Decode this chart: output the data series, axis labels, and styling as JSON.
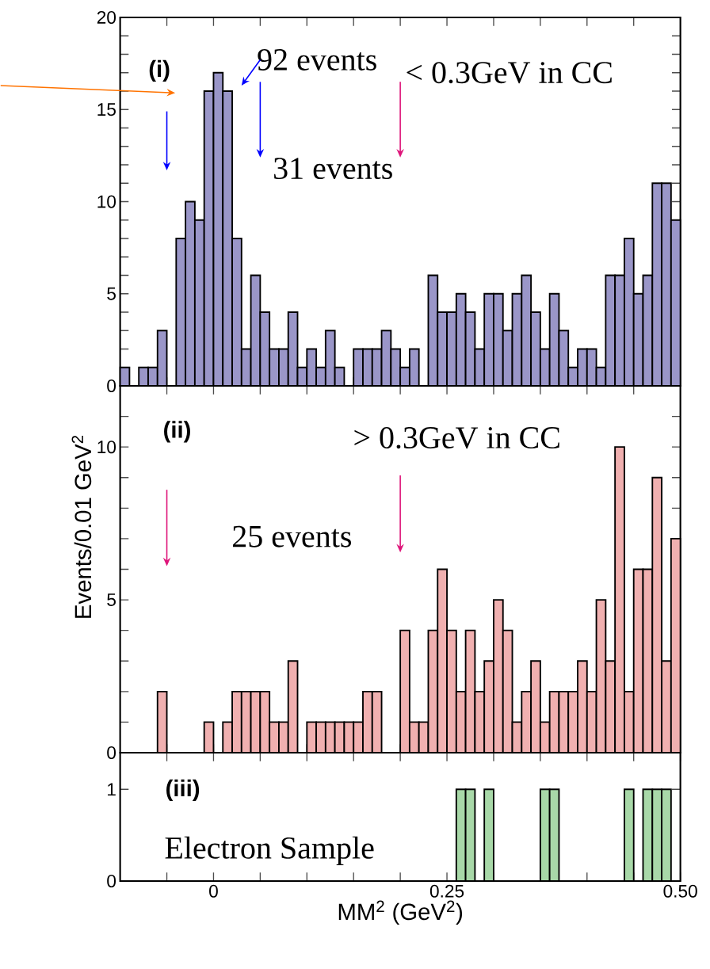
{
  "chart_data": [
    {
      "type": "histogram",
      "color": "#9a96c8",
      "bins": [
        -0.1,
        -0.09,
        -0.08,
        -0.07,
        -0.06,
        -0.05,
        -0.04,
        -0.03,
        -0.02,
        -0.01,
        0,
        0.01,
        0.02,
        0.03,
        0.04,
        0.05,
        0.06,
        0.07,
        0.08,
        0.09,
        0.1,
        0.11,
        0.12,
        0.13,
        0.14,
        0.15,
        0.16,
        0.17,
        0.18,
        0.19,
        0.2,
        0.21,
        0.22,
        0.23,
        0.24,
        0.25,
        0.26,
        0.27,
        0.28,
        0.29,
        0.3,
        0.31,
        0.32,
        0.33,
        0.34,
        0.35,
        0.36,
        0.37,
        0.38,
        0.39,
        0.4,
        0.41,
        0.42,
        0.43,
        0.44,
        0.45,
        0.46,
        0.47,
        0.48,
        0.49,
        0.5
      ],
      "values": [
        1,
        0,
        1,
        1,
        3,
        0,
        8,
        10,
        9,
        16,
        17,
        16,
        8,
        2,
        6,
        4,
        2,
        2,
        4,
        1,
        2,
        1,
        3,
        1,
        0,
        2,
        2,
        2,
        3,
        2,
        1,
        2,
        0,
        6,
        4,
        4,
        5,
        4,
        2,
        5,
        5,
        3,
        5,
        6,
        4,
        2,
        5,
        3,
        1,
        2,
        2,
        1,
        6,
        6,
        8,
        5,
        6,
        11,
        11,
        9
      ],
      "xlim": [
        -0.1,
        0.5
      ],
      "ylim": [
        0,
        20
      ],
      "xticks": [
        {
          "value": -0.05,
          "label": null
        },
        {
          "value": 0,
          "label": null
        },
        {
          "value": 0.05,
          "label": null
        },
        {
          "value": 0.1,
          "label": null
        },
        {
          "value": 0.15,
          "label": null
        },
        {
          "value": 0.2,
          "label": null
        },
        {
          "value": 0.25,
          "label": null
        },
        {
          "value": 0.3,
          "label": null
        },
        {
          "value": 0.35,
          "label": null
        },
        {
          "value": 0.4,
          "label": null
        },
        {
          "value": 0.45,
          "label": null
        }
      ],
      "yticks": [
        0,
        {
          "value": 1,
          "label": null
        },
        {
          "value": 2,
          "label": null
        },
        {
          "value": 3,
          "label": null
        },
        {
          "value": 4,
          "label": null
        },
        5,
        {
          "value": 6,
          "label": null
        },
        {
          "value": 7,
          "label": null
        },
        {
          "value": 8,
          "label": null
        },
        {
          "value": 9,
          "label": null
        },
        10,
        {
          "value": 11,
          "label": null
        },
        {
          "value": 12,
          "label": null
        },
        {
          "value": 13,
          "label": null
        },
        {
          "value": 14,
          "label": null
        },
        15,
        {
          "value": 16,
          "label": null
        },
        {
          "value": 17,
          "label": null
        },
        {
          "value": 18,
          "label": null
        },
        {
          "value": 19,
          "label": null
        },
        20
      ],
      "tick_labels": "y",
      "annotations": [
        "(i)",
        "92 events",
        "< 0.3GeV in CC",
        "31 events"
      ]
    },
    {
      "type": "histogram",
      "color": "#f0b0b0",
      "bins": [
        -0.1,
        -0.09,
        -0.08,
        -0.07,
        -0.06,
        -0.05,
        -0.04,
        -0.03,
        -0.02,
        -0.01,
        0,
        0.01,
        0.02,
        0.03,
        0.04,
        0.05,
        0.06,
        0.07,
        0.08,
        0.09,
        0.1,
        0.11,
        0.12,
        0.13,
        0.14,
        0.15,
        0.16,
        0.17,
        0.18,
        0.19,
        0.2,
        0.21,
        0.22,
        0.23,
        0.24,
        0.25,
        0.26,
        0.27,
        0.28,
        0.29,
        0.3,
        0.31,
        0.32,
        0.33,
        0.34,
        0.35,
        0.36,
        0.37,
        0.38,
        0.39,
        0.4,
        0.41,
        0.42,
        0.43,
        0.44,
        0.45,
        0.46,
        0.47,
        0.48,
        0.49,
        0.5
      ],
      "values": [
        0,
        0,
        0,
        0,
        2,
        0,
        0,
        0,
        0,
        1,
        0,
        1,
        2,
        2,
        2,
        2,
        1,
        1,
        3,
        0,
        1,
        1,
        1,
        1,
        1,
        1,
        2,
        2,
        0,
        0,
        4,
        1,
        1,
        4,
        6,
        4,
        2,
        4,
        2,
        3,
        5,
        4,
        1,
        2,
        3,
        1,
        2,
        2,
        2,
        3,
        2,
        5,
        3,
        10,
        2,
        6,
        6,
        9,
        3,
        7
      ],
      "xlim": [
        -0.1,
        0.5
      ],
      "ylim": [
        0,
        12
      ],
      "xticks": [
        {
          "value": -0.05,
          "label": null
        },
        {
          "value": 0,
          "label": null
        },
        {
          "value": 0.05,
          "label": null
        },
        {
          "value": 0.1,
          "label": null
        },
        {
          "value": 0.15,
          "label": null
        },
        {
          "value": 0.2,
          "label": null
        },
        {
          "value": 0.25,
          "label": null
        },
        {
          "value": 0.3,
          "label": null
        },
        {
          "value": 0.35,
          "label": null
        },
        {
          "value": 0.4,
          "label": null
        },
        {
          "value": 0.45,
          "label": null
        }
      ],
      "yticks": [
        0,
        {
          "value": 1,
          "label": null
        },
        {
          "value": 2,
          "label": null
        },
        {
          "value": 3,
          "label": null
        },
        {
          "value": 4,
          "label": null
        },
        5,
        {
          "value": 6,
          "label": null
        },
        {
          "value": 7,
          "label": null
        },
        {
          "value": 8,
          "label": null
        },
        {
          "value": 9,
          "label": null
        },
        10,
        {
          "value": 11,
          "label": null
        },
        {
          "value": 12,
          "label": null
        }
      ],
      "tick_labels": "y",
      "ylabel": "Events/0.01 GeV$^{2}$",
      "annotations": [
        "(ii)",
        "> 0.3GeV in CC",
        "25 events"
      ]
    },
    {
      "type": "histogram",
      "color": "#a8d8a8",
      "bins": [
        -0.1,
        -0.09,
        -0.08,
        -0.07,
        -0.06,
        -0.05,
        -0.04,
        -0.03,
        -0.02,
        -0.01,
        0,
        0.01,
        0.02,
        0.03,
        0.04,
        0.05,
        0.06,
        0.07,
        0.08,
        0.09,
        0.1,
        0.11,
        0.12,
        0.13,
        0.14,
        0.15,
        0.16,
        0.17,
        0.18,
        0.19,
        0.2,
        0.21,
        0.22,
        0.23,
        0.24,
        0.25,
        0.26,
        0.27,
        0.28,
        0.29,
        0.3,
        0.31,
        0.32,
        0.33,
        0.34,
        0.35,
        0.36,
        0.37,
        0.38,
        0.39,
        0.4,
        0.41,
        0.42,
        0.43,
        0.44,
        0.45,
        0.46,
        0.47,
        0.48,
        0.49,
        0.5
      ],
      "values": [
        0,
        0,
        0,
        0,
        0,
        0,
        0,
        0,
        0,
        0,
        0,
        0,
        0,
        0,
        0,
        0,
        0,
        0,
        0,
        0,
        0,
        0,
        0,
        0,
        0,
        0,
        0,
        0,
        0,
        0,
        0,
        0,
        0,
        0,
        0,
        0,
        1,
        1,
        0,
        1,
        0,
        0,
        0,
        0,
        0,
        1,
        1,
        0,
        0,
        0,
        0,
        0,
        0,
        0,
        1,
        0,
        1,
        1,
        1,
        0
      ],
      "xlim": [
        -0.1,
        0.5
      ],
      "ylim": [
        0,
        1.4
      ],
      "xticks": [
        {
          "value": -0.05,
          "label": null
        },
        {
          "value": 0,
          "label": "0"
        },
        {
          "value": 0.05,
          "label": null
        },
        {
          "value": 0.1,
          "label": null
        },
        {
          "value": 0.15,
          "label": null
        },
        {
          "value": 0.2,
          "label": null
        },
        {
          "value": 0.25,
          "label": "0.25"
        },
        {
          "value": 0.3,
          "label": null
        },
        {
          "value": 0.35,
          "label": null
        },
        {
          "value": 0.4,
          "label": null
        },
        {
          "value": 0.45,
          "label": null
        },
        {
          "value": 0.5,
          "label": "0.50"
        }
      ],
      "yticks": [
        0,
        1
      ],
      "xlabel": "MM$^{2}$ (GeV$^{2}$)",
      "annotations": [
        "(iii)",
        "Electron Sample"
      ]
    }
  ]
}
